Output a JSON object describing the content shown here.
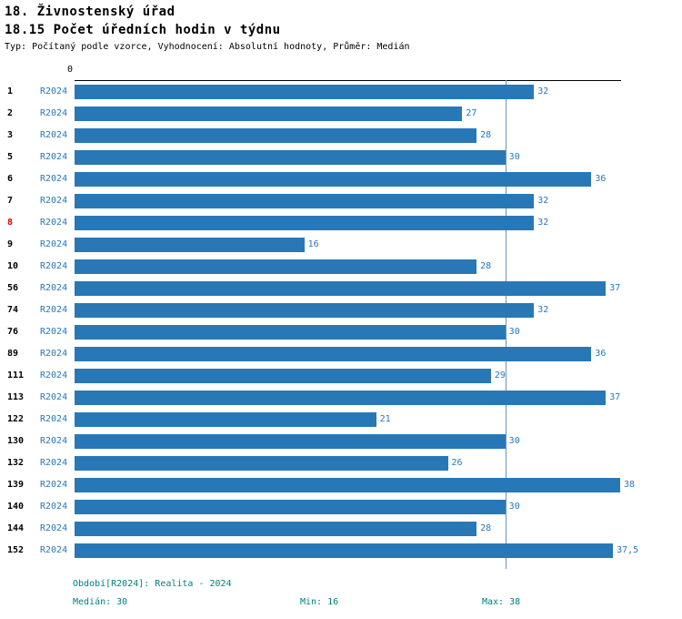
{
  "header": {
    "title1": "18. Živnostenský úřad",
    "title2": "18.15 Počet úředních hodin v týdnu",
    "subtitle": "Typ: Počítaný podle vzorce, Vyhodnocení: Absolutní hodnoty, Průměr: Medián"
  },
  "chart_data": {
    "type": "bar",
    "orientation": "horizontal",
    "title": "18.15 Počet úředních hodin v týdnu",
    "x_axis": {
      "min": 0,
      "max": 38,
      "origin_label": "0"
    },
    "period_label": "R2024",
    "median_value": 30,
    "min_value": 16,
    "max_value": 38,
    "colors": {
      "bar": "#2878b8",
      "value_label": "#2878b8",
      "period_label": "#2878b8",
      "highlight_id": "#e00000",
      "median_line": "#6a94b8",
      "footer_text": "#008080"
    },
    "rows": [
      {
        "id": "1",
        "value": 32,
        "label": "32",
        "highlight": false
      },
      {
        "id": "2",
        "value": 27,
        "label": "27",
        "highlight": false
      },
      {
        "id": "3",
        "value": 28,
        "label": "28",
        "highlight": false
      },
      {
        "id": "5",
        "value": 30,
        "label": "30",
        "highlight": false
      },
      {
        "id": "6",
        "value": 36,
        "label": "36",
        "highlight": false
      },
      {
        "id": "7",
        "value": 32,
        "label": "32",
        "highlight": false
      },
      {
        "id": "8",
        "value": 32,
        "label": "32",
        "highlight": true
      },
      {
        "id": "9",
        "value": 16,
        "label": "16",
        "highlight": false
      },
      {
        "id": "10",
        "value": 28,
        "label": "28",
        "highlight": false
      },
      {
        "id": "56",
        "value": 37,
        "label": "37",
        "highlight": false
      },
      {
        "id": "74",
        "value": 32,
        "label": "32",
        "highlight": false
      },
      {
        "id": "76",
        "value": 30,
        "label": "30",
        "highlight": false
      },
      {
        "id": "89",
        "value": 36,
        "label": "36",
        "highlight": false
      },
      {
        "id": "111",
        "value": 29,
        "label": "29",
        "highlight": false
      },
      {
        "id": "113",
        "value": 37,
        "label": "37",
        "highlight": false
      },
      {
        "id": "122",
        "value": 21,
        "label": "21",
        "highlight": false
      },
      {
        "id": "130",
        "value": 30,
        "label": "30",
        "highlight": false
      },
      {
        "id": "132",
        "value": 26,
        "label": "26",
        "highlight": false
      },
      {
        "id": "139",
        "value": 38,
        "label": "38",
        "highlight": false
      },
      {
        "id": "140",
        "value": 30,
        "label": "30",
        "highlight": false
      },
      {
        "id": "144",
        "value": 28,
        "label": "28",
        "highlight": false
      },
      {
        "id": "152",
        "value": 37.5,
        "label": "37,5",
        "highlight": false
      }
    ]
  },
  "footer": {
    "period": "Období[R2024]: Realita - 2024",
    "median": "Medián: 30",
    "min": "Min: 16",
    "max": "Max: 38"
  }
}
